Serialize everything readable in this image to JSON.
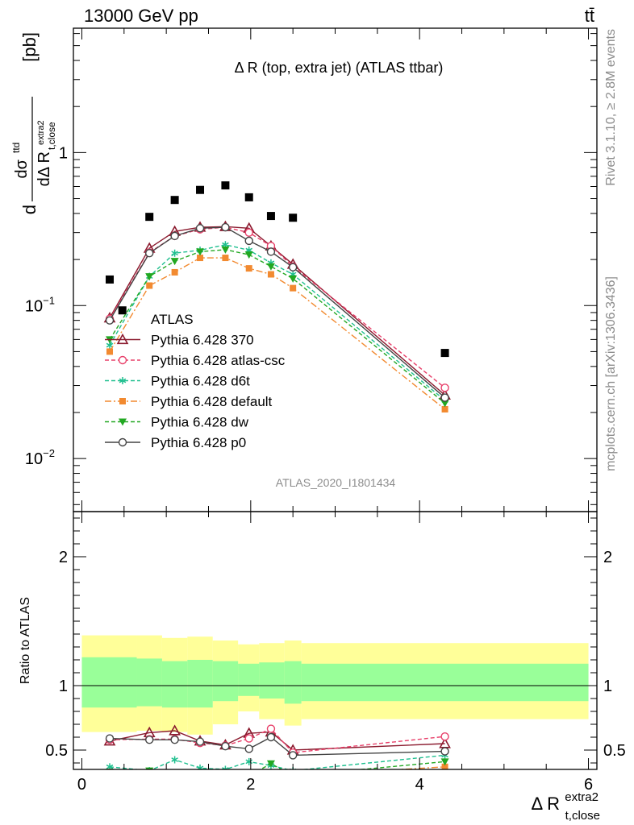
{
  "header": {
    "energy": "13000 GeV pp",
    "process": "tt̄"
  },
  "side_labels": {
    "rivet": "Rivet 3.1.10, ≥ 2.8M events",
    "site": "mcplots.cern.ch [arXiv:1306.3436]"
  },
  "colors": {
    "data": "#000000",
    "p370": "#8b1a2e",
    "atlascsc": "#e8406a",
    "d6t": "#1fbf8f",
    "default": "#f28a30",
    "dw": "#22a822",
    "p0": "#444444",
    "band_inner": "#99ff99",
    "band_outer": "#ffff99"
  },
  "chart_data": [
    {
      "type": "scatter",
      "panel": "main",
      "title": "Δ R (top, extra jet) (ATLAS ttbar)",
      "watermark": "ATLAS_2020_I1801434",
      "ylabel": "dσ^ttd / dΔ R t,close^extra2 [pb]",
      "ylabel_parts": {
        "d1": "d",
        "num": "dσ",
        "num_sup": "ttd",
        "den": "dΔ R",
        "den_sub": "t,close",
        "den_sup": "extra2",
        "unit": "[pb]"
      },
      "yscale": "log",
      "ylim": [
        0.0045,
        6.5
      ],
      "xlim": [
        -0.1,
        6.1
      ],
      "yticks": [
        {
          "value": 0.01,
          "base": "10",
          "exp": "−2"
        },
        {
          "value": 0.1,
          "base": "10",
          "exp": "−1"
        },
        {
          "value": 1,
          "base": "1",
          "exp": ""
        }
      ],
      "legend_position": "left-middle",
      "series": [
        {
          "name": "ATLAS",
          "key": "data",
          "x": [
            0.33,
            0.48,
            0.8,
            1.1,
            1.4,
            1.7,
            1.98,
            2.24,
            2.5,
            4.3
          ],
          "y": [
            0.148,
            0.093,
            0.38,
            0.49,
            0.57,
            0.61,
            0.51,
            0.385,
            0.375,
            0.049
          ]
        },
        {
          "name": "Pythia 6.428 370",
          "key": "p370",
          "x": [
            0.33,
            0.8,
            1.1,
            1.4,
            1.7,
            1.98,
            2.24,
            2.5,
            4.3
          ],
          "y": [
            0.083,
            0.237,
            0.305,
            0.325,
            0.328,
            0.32,
            0.245,
            0.186,
            0.026
          ]
        },
        {
          "name": "Pythia 6.428 atlas-csc",
          "key": "atlascsc",
          "x": [
            0.33,
            0.8,
            1.1,
            1.4,
            1.7,
            1.98,
            2.24,
            2.5,
            4.3
          ],
          "y": [
            0.082,
            0.222,
            0.285,
            0.315,
            0.325,
            0.3,
            0.245,
            0.18,
            0.029
          ]
        },
        {
          "name": "Pythia 6.428 d6t",
          "key": "d6t",
          "x": [
            0.33,
            0.8,
            1.1,
            1.4,
            1.7,
            1.98,
            2.24,
            2.5,
            4.3
          ],
          "y": [
            0.055,
            0.155,
            0.22,
            0.23,
            0.25,
            0.23,
            0.19,
            0.16,
            0.024
          ]
        },
        {
          "name": "Pythia 6.428 default",
          "key": "default",
          "x": [
            0.33,
            0.8,
            1.1,
            1.4,
            1.7,
            1.98,
            2.24,
            2.5,
            4.3
          ],
          "y": [
            0.05,
            0.135,
            0.165,
            0.205,
            0.205,
            0.175,
            0.16,
            0.13,
            0.021
          ]
        },
        {
          "name": "Pythia 6.428 dw",
          "key": "dw",
          "x": [
            0.33,
            0.8,
            1.1,
            1.4,
            1.7,
            1.98,
            2.24,
            2.5,
            4.3
          ],
          "y": [
            0.06,
            0.155,
            0.195,
            0.225,
            0.232,
            0.215,
            0.18,
            0.15,
            0.023
          ]
        },
        {
          "name": "Pythia 6.428 p0",
          "key": "p0",
          "x": [
            0.33,
            0.8,
            1.1,
            1.4,
            1.7,
            1.98,
            2.24,
            2.5,
            4.3
          ],
          "y": [
            0.08,
            0.22,
            0.285,
            0.32,
            0.325,
            0.265,
            0.225,
            0.178,
            0.025
          ]
        }
      ]
    },
    {
      "type": "line",
      "panel": "ratio",
      "ylabel": "Ratio to ATLAS",
      "xlabel": "Δ R t,close^extra2",
      "xlabel_parts": {
        "main": "Δ R",
        "sup": "extra2",
        "sub": "t,close"
      },
      "ylim": [
        0.35,
        2.35
      ],
      "xlim": [
        -0.1,
        6.1
      ],
      "xticks": [
        0,
        2,
        4,
        6
      ],
      "yticks": [
        0.5,
        1,
        2
      ],
      "bands": {
        "edges": [
          0.0,
          0.65,
          0.95,
          1.25,
          1.55,
          1.85,
          2.1,
          2.4,
          2.6,
          6.0
        ],
        "outer_low": [
          0.64,
          0.65,
          0.64,
          0.62,
          0.7,
          0.8,
          0.74,
          0.69,
          0.74
        ],
        "outer_high": [
          1.39,
          1.39,
          1.37,
          1.38,
          1.35,
          1.32,
          1.33,
          1.35,
          1.33
        ],
        "inner_low": [
          0.83,
          0.84,
          0.83,
          0.83,
          0.88,
          0.92,
          0.9,
          0.86,
          0.88
        ],
        "inner_high": [
          1.22,
          1.21,
          1.19,
          1.2,
          1.19,
          1.17,
          1.18,
          1.19,
          1.17
        ]
      },
      "series": [
        {
          "name": "Pythia 6.428 370",
          "key": "p370",
          "x": [
            0.33,
            0.8,
            1.1,
            1.4,
            1.7,
            1.98,
            2.24,
            2.5,
            4.3
          ],
          "y": [
            0.57,
            0.635,
            0.65,
            0.57,
            0.54,
            0.63,
            0.64,
            0.5,
            0.55
          ]
        },
        {
          "name": "Pythia 6.428 atlas-csc",
          "key": "atlascsc",
          "x": [
            0.33,
            0.8,
            1.1,
            1.4,
            1.7,
            1.98,
            2.24,
            2.5,
            4.3
          ],
          "y": [
            0.58,
            0.585,
            0.585,
            0.555,
            0.535,
            0.59,
            0.665,
            0.48,
            0.605
          ]
        },
        {
          "name": "Pythia 6.428 d6t",
          "key": "d6t",
          "x": [
            0.33,
            0.8,
            1.1,
            1.4,
            1.7,
            1.98,
            2.24,
            2.5,
            4.3
          ],
          "y": [
            0.37,
            0.34,
            0.425,
            0.36,
            0.35,
            0.41,
            0.38,
            0.34,
            0.46
          ]
        },
        {
          "name": "Pythia 6.428 default",
          "key": "default",
          "x": [
            0.33,
            0.8,
            1.1,
            1.4,
            1.7,
            1.98,
            2.24,
            2.5,
            4.3
          ],
          "y": [
            0.33,
            0.29,
            0.3,
            0.3,
            0.3,
            0.3,
            0.32,
            0.3,
            0.37
          ]
        },
        {
          "name": "Pythia 6.428 dw",
          "key": "dw",
          "x": [
            0.33,
            0.8,
            1.1,
            1.4,
            1.7,
            1.98,
            2.24,
            2.5,
            4.3
          ],
          "y": [
            0.33,
            0.34,
            0.32,
            0.3,
            0.3,
            0.3,
            0.395,
            0.3,
            0.41
          ]
        },
        {
          "name": "Pythia 6.428 p0",
          "key": "p0",
          "x": [
            0.33,
            0.8,
            1.1,
            1.4,
            1.7,
            1.98,
            2.24,
            2.5,
            4.3
          ],
          "y": [
            0.59,
            0.58,
            0.58,
            0.565,
            0.53,
            0.51,
            0.6,
            0.46,
            0.49
          ]
        }
      ]
    }
  ]
}
